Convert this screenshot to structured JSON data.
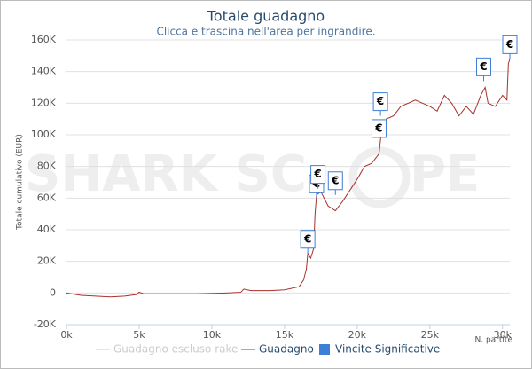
{
  "chart_data": {
    "type": "line",
    "title": "Totale guadagno",
    "subtitle": "Clicca e trascina nell'area per ingrandire.",
    "y_label": "Totale cumulativo (EUR)",
    "x_label": "N. partite",
    "watermark_left": "SHARK SC",
    "watermark_right": "PE",
    "xlim": [
      0,
      30500
    ],
    "ylim": [
      -20000,
      160000
    ],
    "xticks": [
      {
        "value": 0,
        "label": "0k"
      },
      {
        "value": 5000,
        "label": "5k"
      },
      {
        "value": 10000,
        "label": "10k"
      },
      {
        "value": 15000,
        "label": "15k"
      },
      {
        "value": 20000,
        "label": "20k"
      },
      {
        "value": 25000,
        "label": "25k"
      },
      {
        "value": 30000,
        "label": "30k"
      }
    ],
    "yticks": [
      {
        "value": -20000,
        "label": "-20K"
      },
      {
        "value": 0,
        "label": "0"
      },
      {
        "value": 20000,
        "label": "20K"
      },
      {
        "value": 40000,
        "label": "40K"
      },
      {
        "value": 60000,
        "label": "60K"
      },
      {
        "value": 80000,
        "label": "80K"
      },
      {
        "value": 100000,
        "label": "100K"
      },
      {
        "value": 120000,
        "label": "120K"
      },
      {
        "value": 140000,
        "label": "140K"
      },
      {
        "value": 160000,
        "label": "160K"
      }
    ],
    "grid": true,
    "legend": [
      {
        "name": "Guadagno escluso rake",
        "color": "#cccccc",
        "hidden": true
      },
      {
        "name": "Guadagno",
        "color": "#a8302c",
        "hidden": false
      },
      {
        "name": "Vincite Significative",
        "color": "#3d7fd6",
        "hidden": false
      }
    ],
    "series": [
      {
        "name": "Guadagno",
        "color": "#a8302c",
        "x": [
          0,
          1000,
          2000,
          3000,
          4000,
          4800,
          5000,
          5300,
          7000,
          9000,
          11000,
          12000,
          12200,
          12700,
          14000,
          15000,
          16000,
          16300,
          16500,
          16600,
          16800,
          17000,
          17100,
          17200,
          17500,
          18000,
          18500,
          19000,
          19500,
          20000,
          20500,
          21000,
          21500,
          21700,
          22000,
          22500,
          23000,
          24000,
          25000,
          25500,
          26000,
          26500,
          27000,
          27500,
          28000,
          28500,
          28800,
          29000,
          29500,
          30000,
          30300,
          30400,
          30500
        ],
        "values": [
          0,
          -1500,
          -2000,
          -2500,
          -2000,
          -1000,
          500,
          -500,
          -500,
          -500,
          0,
          500,
          2500,
          1500,
          1500,
          2000,
          4000,
          8000,
          15000,
          25000,
          22000,
          28000,
          50000,
          62000,
          64000,
          55000,
          52000,
          58000,
          65000,
          72000,
          80000,
          82000,
          88000,
          105000,
          110000,
          112000,
          118000,
          122000,
          118000,
          115000,
          125000,
          120000,
          112000,
          118000,
          113000,
          125000,
          130000,
          120000,
          118000,
          125000,
          122000,
          145000,
          148000
        ]
      },
      {
        "name": "Vincite Significative",
        "color": "#3d7fd6",
        "marker_label": "€",
        "x": [
          16600,
          17200,
          17300,
          18500,
          21500,
          21600,
          28700,
          30500
        ],
        "values": [
          25000,
          60000,
          66000,
          62000,
          95000,
          112000,
          134000,
          148000
        ]
      }
    ]
  }
}
